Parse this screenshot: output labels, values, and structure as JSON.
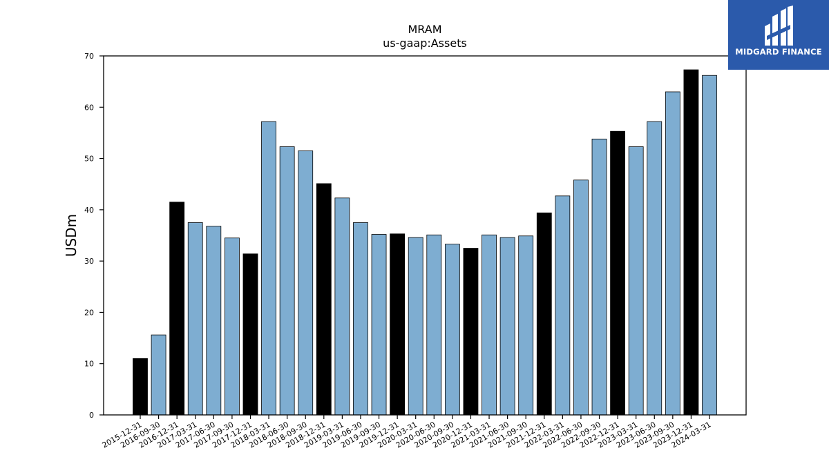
{
  "chart_data": {
    "type": "bar",
    "title": "MRAM",
    "subtitle": "us-gaap:Assets",
    "xlabel": "",
    "ylabel": "USDm",
    "ylim": [
      0,
      70
    ],
    "yticks": [
      0,
      10,
      20,
      30,
      40,
      50,
      60,
      70
    ],
    "grid": false,
    "categories": [
      "2015-12-31",
      "2016-09-30",
      "2016-12-31",
      "2017-03-31",
      "2017-06-30",
      "2017-09-30",
      "2017-12-31",
      "2018-03-31",
      "2018-06-30",
      "2018-09-30",
      "2018-12-31",
      "2019-03-31",
      "2019-06-30",
      "2019-09-30",
      "2019-12-31",
      "2020-03-31",
      "2020-06-30",
      "2020-09-30",
      "2020-12-31",
      "2021-03-31",
      "2021-06-30",
      "2021-09-30",
      "2021-12-31",
      "2022-03-31",
      "2022-06-30",
      "2022-09-30",
      "2022-12-31",
      "2023-03-31",
      "2023-06-30",
      "2023-09-30",
      "2023-12-31",
      "2024-03-31"
    ],
    "values": [
      11.0,
      15.6,
      41.5,
      37.5,
      36.8,
      34.5,
      31.4,
      57.2,
      52.3,
      51.5,
      45.1,
      42.3,
      37.5,
      35.2,
      35.3,
      34.6,
      35.1,
      33.3,
      32.5,
      35.1,
      34.6,
      34.9,
      39.4,
      42.7,
      45.8,
      53.8,
      55.3,
      52.3,
      57.2,
      63.0,
      67.3,
      66.2
    ],
    "colors": {
      "annual": "#000000",
      "quarterly": "#7eadd1",
      "edge": "#000000"
    }
  },
  "logo": {
    "text": "MIDGARD FINANCE",
    "background": "#2b5aab"
  }
}
